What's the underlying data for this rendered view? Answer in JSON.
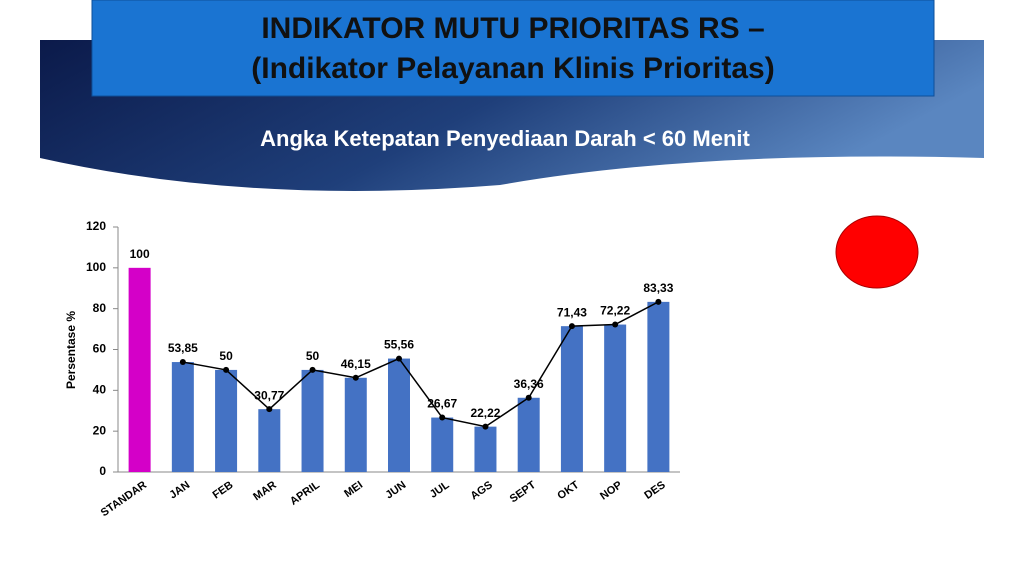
{
  "slide": {
    "title_lines": [
      "INDIKATOR MUTU PRIORITAS RS –",
      "(Indikator Pelayanan Klinis Prioritas)"
    ],
    "subtitle": "Angka Ketepatan Penyediaan Darah < 60 Menit"
  },
  "chart_data": {
    "type": "bar",
    "ylabel": "Persentase %",
    "categories": [
      "STANDAR",
      "JAN",
      "FEB",
      "MAR",
      "APRIL",
      "MEI",
      "JUN",
      "JUL",
      "AGS",
      "SEPT",
      "OKT",
      "NOP",
      "DES"
    ],
    "values": [
      100,
      53.85,
      50,
      30.77,
      50,
      46.15,
      55.56,
      26.67,
      22.22,
      36.36,
      71.43,
      72.22,
      83.33
    ],
    "value_labels": [
      "100",
      "53,85",
      "50",
      "30,77",
      "50",
      "46,15",
      "55,56",
      "26,67",
      "22,22",
      "36,36",
      "71,43",
      "72,22",
      "83,33"
    ],
    "color": "#4472c4",
    "colors": [
      "#d400c8",
      "#4472c4",
      "#4472c4",
      "#4472c4",
      "#4472c4",
      "#4472c4",
      "#4472c4",
      "#4472c4",
      "#4472c4",
      "#4472c4",
      "#4472c4",
      "#4472c4",
      "#4472c4"
    ],
    "line_color": "#000000",
    "ylim": [
      0,
      120
    ],
    "yticks": [
      0,
      20,
      40,
      60,
      80,
      100,
      120
    ],
    "grid": false
  }
}
